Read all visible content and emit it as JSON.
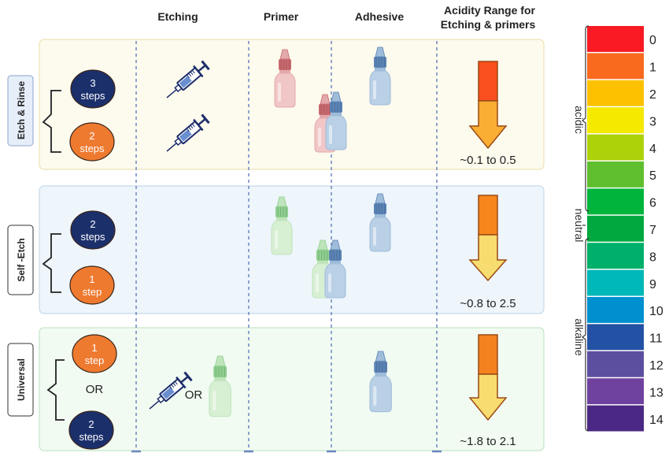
{
  "headers": {
    "etching": "Etching",
    "primer": "Primer",
    "adhesive": "Adhesive",
    "acidity_line1": "Acidity Range for",
    "acidity_line2": "Etching  &  primers"
  },
  "rows": [
    {
      "label": "Etch & Rinse",
      "options": [
        {
          "num": "3",
          "unit": "steps",
          "color": "#1b2f6b"
        },
        {
          "num": "2",
          "unit": "steps",
          "color": "#ee7a30"
        }
      ],
      "range": "~0.1 to 0.5",
      "arrow_colors": [
        "#f94f1e",
        "#fbae34"
      ]
    },
    {
      "label": "Self -Etch",
      "options": [
        {
          "num": "2",
          "unit": "steps",
          "color": "#1b2f6b"
        },
        {
          "num": "1",
          "unit": "step",
          "color": "#ee7a30"
        }
      ],
      "range": "~0.8 to 2.5",
      "arrow_colors": [
        "#f7861c",
        "#f7dc6f"
      ]
    },
    {
      "label": "Universal",
      "options": [
        {
          "num": "1",
          "unit": "step",
          "color": "#ee7a30"
        },
        {
          "num": "2",
          "unit": "steps",
          "color": "#1b2f6b"
        }
      ],
      "or_text": "OR",
      "etching_or_text": "OR",
      "range": "~1.8 to 2.1",
      "arrow_colors": [
        "#f58220",
        "#f7dc6f"
      ]
    }
  ],
  "ph_scale": {
    "values": [
      "0",
      "1",
      "2",
      "3",
      "4",
      "5",
      "6",
      "7",
      "8",
      "9",
      "10",
      "11",
      "12",
      "13",
      "14"
    ],
    "colors": [
      "#f91a24",
      "#f96a1f",
      "#fdc100",
      "#f5e900",
      "#aed20a",
      "#5fbf2e",
      "#00b43c",
      "#00a83f",
      "#00b06a",
      "#00b8b8",
      "#0090cf",
      "#2352a5",
      "#5c4fa0",
      "#6f42a0",
      "#4b2883"
    ],
    "acidic": "acidic",
    "neutral": "neutral",
    "alkaline": "alkaline"
  }
}
